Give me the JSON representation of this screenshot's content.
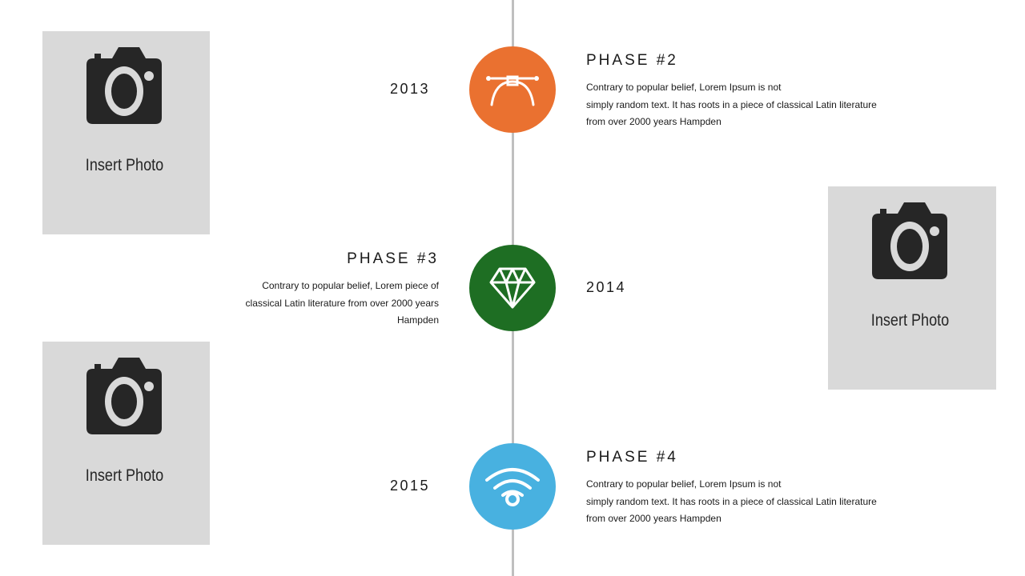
{
  "photos": [
    {
      "label": "Insert Photo"
    },
    {
      "label": "Insert Photo"
    },
    {
      "label": "Insert Photo"
    }
  ],
  "milestones": [
    {
      "year": "2013",
      "title": "PHASE #2",
      "body": [
        "Contrary to popular belief, Lorem Ipsum is not",
        "simply random text. It has roots in a piece of classical Latin literature",
        "from over 2000 years Hampden"
      ],
      "color": "#ea7130",
      "icon": "bezier-pen-icon"
    },
    {
      "year": "2014",
      "title": "PHASE #3",
      "body": [
        "Contrary to popular belief, Lorem piece of",
        "classical Latin literature from over 2000 years",
        "Hampden"
      ],
      "color": "#1e6e23",
      "icon": "diamond-icon"
    },
    {
      "year": "2015",
      "title": "PHASE #4",
      "body": [
        "Contrary to popular belief, Lorem Ipsum is not",
        "simply random text. It has roots in a piece of classical Latin literature",
        "from over 2000 years Hampden"
      ],
      "color": "#48b1e0",
      "icon": "wifi-icon"
    }
  ],
  "colors": {
    "timeline": "#bfbfbf",
    "photo_bg": "#d9d9d9",
    "camera": "#262626"
  }
}
